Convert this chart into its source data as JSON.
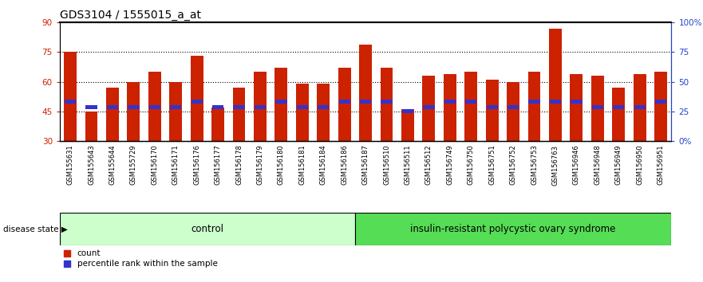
{
  "title": "GDS3104 / 1555015_a_at",
  "samples": [
    "GSM155631",
    "GSM155643",
    "GSM155644",
    "GSM155729",
    "GSM156170",
    "GSM156171",
    "GSM156176",
    "GSM156177",
    "GSM156178",
    "GSM156179",
    "GSM156180",
    "GSM156181",
    "GSM156184",
    "GSM156186",
    "GSM156187",
    "GSM156510",
    "GSM156511",
    "GSM156512",
    "GSM156749",
    "GSM156750",
    "GSM156751",
    "GSM156752",
    "GSM156753",
    "GSM156763",
    "GSM156946",
    "GSM156948",
    "GSM156949",
    "GSM156950",
    "GSM156951"
  ],
  "bar_values": [
    75,
    45,
    57,
    60,
    65,
    60,
    73,
    47,
    57,
    65,
    67,
    59,
    59,
    67,
    79,
    67,
    46,
    63,
    64,
    65,
    61,
    60,
    65,
    87,
    64,
    63,
    57,
    64,
    65
  ],
  "percentile_values": [
    50,
    47,
    47,
    47,
    47,
    47,
    50,
    47,
    47,
    47,
    50,
    47,
    47,
    50,
    50,
    50,
    45,
    47,
    50,
    50,
    47,
    47,
    50,
    50,
    50,
    47,
    47,
    47,
    50
  ],
  "bar_bottom": 30,
  "control_count": 14,
  "disease_label": "control",
  "disease_label2": "insulin-resistant polycystic ovary syndrome",
  "bar_color": "#cc2200",
  "percentile_color": "#3333cc",
  "ylim_left": [
    30,
    90
  ],
  "yticks_left": [
    30,
    45,
    60,
    75,
    90
  ],
  "yticks_right": [
    0,
    25,
    50,
    75,
    100
  ],
  "ytick_right_labels": [
    "0",
    "25",
    "50",
    "75",
    "100%"
  ],
  "ytick_left_labels": [
    "30",
    "45",
    "60",
    "75",
    "90"
  ],
  "dotted_lines": [
    45,
    60,
    75
  ],
  "control_bg": "#ccffcc",
  "disease_bg": "#55dd55",
  "bar_width": 0.6,
  "title_fontsize": 10,
  "tick_fontsize": 7.5,
  "label_fontsize": 8
}
